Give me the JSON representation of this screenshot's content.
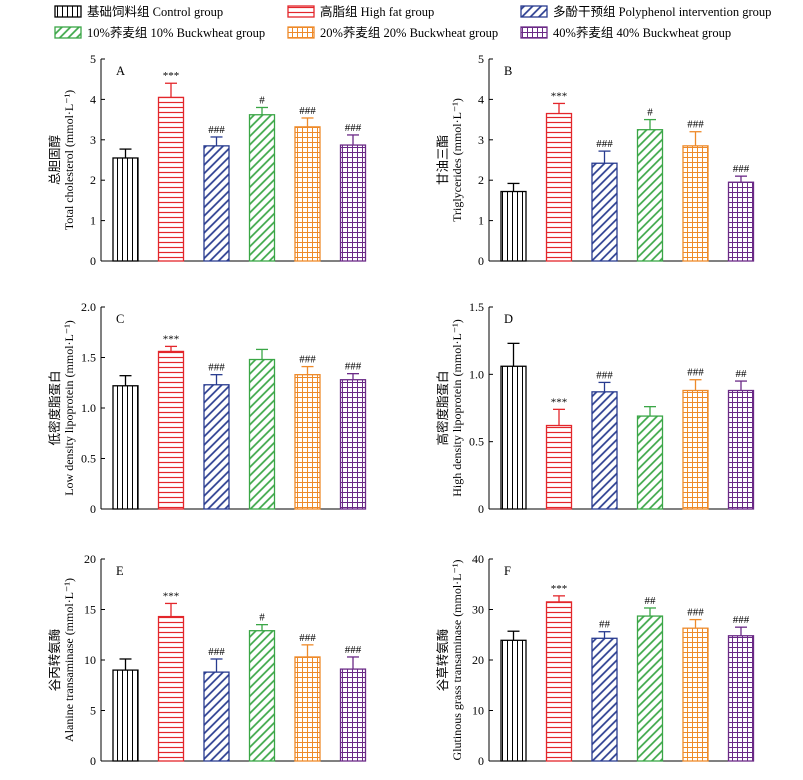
{
  "legend": {
    "items": [
      {
        "label": "基础饲料组 Control group",
        "pattern": "vert",
        "color": "#000000"
      },
      {
        "label": "高脂组 High fat group",
        "pattern": "horiz",
        "color": "#e3262b"
      },
      {
        "label": "多酚干预组 Polyphenol intervention group",
        "pattern": "diag",
        "color": "#283b8f"
      },
      {
        "label": "10%荞麦组 10% Buckwheat group",
        "pattern": "diag",
        "color": "#3aa646"
      },
      {
        "label": "20%荞麦组 20% Buckwheat group",
        "pattern": "grid",
        "color": "#ee8a2a"
      },
      {
        "label": "40%荞麦组 40% Buckwheat group",
        "pattern": "grid",
        "color": "#6b2a87"
      }
    ]
  },
  "chart_data": [
    {
      "type": "bar",
      "panel": "A",
      "ylabel_cn": "总胆固醇",
      "ylabel_en": "Total cholesterol (mmol·L⁻¹)",
      "ylim": [
        0,
        5
      ],
      "yticks": [
        "0",
        "1",
        "2",
        "3",
        "4",
        "5"
      ],
      "values": [
        2.55,
        4.05,
        2.85,
        3.62,
        3.32,
        2.87
      ],
      "errors": [
        0.22,
        0.35,
        0.22,
        0.18,
        0.22,
        0.25
      ],
      "annotations": [
        "",
        "***",
        "###",
        "#",
        "###",
        "###"
      ]
    },
    {
      "type": "bar",
      "panel": "B",
      "ylabel_cn": "甘油三酯",
      "ylabel_en": "Triglycerides (mmol·L⁻¹)",
      "ylim": [
        0,
        5
      ],
      "yticks": [
        "0",
        "1",
        "2",
        "3",
        "4",
        "5"
      ],
      "values": [
        1.72,
        3.65,
        2.42,
        3.25,
        2.85,
        1.95
      ],
      "errors": [
        0.2,
        0.25,
        0.3,
        0.25,
        0.35,
        0.15
      ],
      "annotations": [
        "",
        "***",
        "###",
        "#",
        "###",
        "###"
      ]
    },
    {
      "type": "bar",
      "panel": "C",
      "ylabel_cn": "低密度脂蛋白",
      "ylabel_en": "Low density lipoprotein (mmol·L⁻¹)",
      "ylim": [
        0,
        2.0
      ],
      "yticks": [
        "0",
        "0.5",
        "1.0",
        "1.5",
        "2.0"
      ],
      "values": [
        1.22,
        1.56,
        1.23,
        1.48,
        1.33,
        1.28
      ],
      "errors": [
        0.1,
        0.05,
        0.1,
        0.1,
        0.08,
        0.06
      ],
      "annotations": [
        "",
        "***",
        "###",
        "",
        "###",
        "###"
      ]
    },
    {
      "type": "bar",
      "panel": "D",
      "ylabel_cn": "高密度脂蛋白",
      "ylabel_en": "High density lipoprotein (mmol·L⁻¹)",
      "ylim": [
        0,
        1.5
      ],
      "yticks": [
        "0",
        "0.5",
        "1.0",
        "1.5"
      ],
      "values": [
        1.06,
        0.62,
        0.87,
        0.69,
        0.88,
        0.88
      ],
      "errors": [
        0.17,
        0.12,
        0.07,
        0.07,
        0.08,
        0.07
      ],
      "annotations": [
        "",
        "***",
        "###",
        "",
        "###",
        "##"
      ]
    },
    {
      "type": "bar",
      "panel": "E",
      "ylabel_cn": "谷丙转氨酶",
      "ylabel_en": "Alanine transaminase (mmol·L⁻¹)",
      "ylim": [
        0,
        20
      ],
      "yticks": [
        "0",
        "5",
        "10",
        "15",
        "20"
      ],
      "values": [
        9.0,
        14.3,
        8.8,
        12.9,
        10.3,
        9.1
      ],
      "errors": [
        1.1,
        1.3,
        1.3,
        0.6,
        1.2,
        1.2
      ],
      "annotations": [
        "",
        "***",
        "###",
        "#",
        "###",
        "###"
      ]
    },
    {
      "type": "bar",
      "panel": "F",
      "ylabel_cn": "谷草转氨酶",
      "ylabel_en": "Glutinous grass transaminase (mmol·L⁻¹)",
      "ylim": [
        0,
        40
      ],
      "yticks": [
        "0",
        "10",
        "20",
        "30",
        "40"
      ],
      "values": [
        23.9,
        31.5,
        24.3,
        28.7,
        26.3,
        24.8
      ],
      "errors": [
        1.8,
        1.2,
        1.3,
        1.6,
        1.7,
        1.7
      ],
      "annotations": [
        "",
        "***",
        "##",
        "##",
        "###",
        "###"
      ]
    }
  ]
}
